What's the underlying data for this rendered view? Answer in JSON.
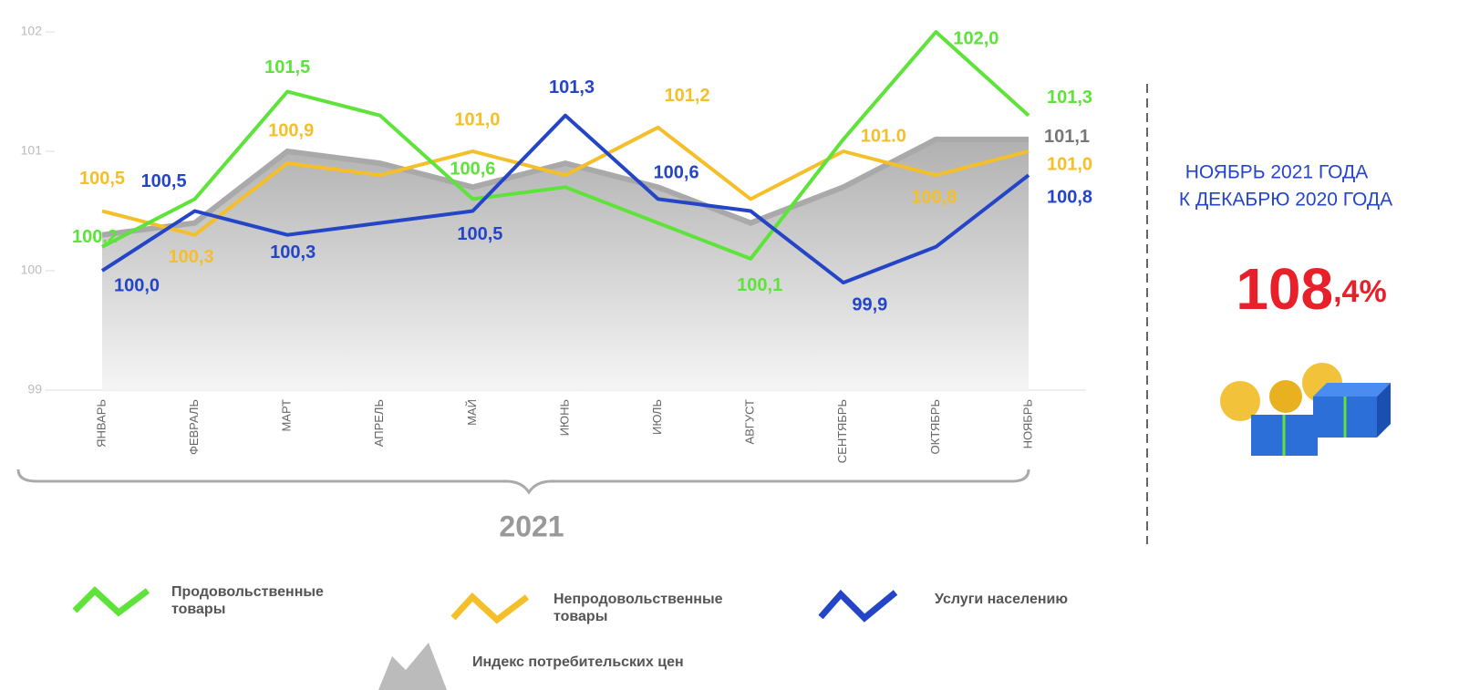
{
  "chart_data": {
    "type": "line",
    "categories": [
      "ЯНВАРЬ",
      "ФЕВРАЛЬ",
      "МАРТ",
      "АПРЕЛЬ",
      "МАЙ",
      "ИЮНЬ",
      "ИЮЛЬ",
      "АВГУСТ",
      "СЕНТЯБРЬ",
      "ОКТЯБРЬ",
      "НОЯБРЬ"
    ],
    "ylim": [
      99,
      102
    ],
    "yticks": [
      99,
      100,
      101,
      102
    ],
    "series": [
      {
        "name": "Продовольственные товары",
        "type": "line",
        "color": "#5ee33a",
        "values": [
          100.2,
          100.6,
          101.5,
          101.3,
          100.6,
          100.7,
          100.4,
          100.1,
          101.1,
          102.0,
          101.3
        ],
        "value_labels": [
          "100,2",
          null,
          "101,5",
          null,
          "100,6",
          null,
          null,
          "100,1",
          null,
          "102,0",
          "101,3"
        ]
      },
      {
        "name": "Непродовольственные товары",
        "type": "line",
        "color": "#f5bf2a",
        "values": [
          100.5,
          100.3,
          100.9,
          100.8,
          101.0,
          100.8,
          101.2,
          100.6,
          101.0,
          100.8,
          101.0
        ],
        "value_labels": [
          "100,5",
          "100,3",
          "100,9",
          null,
          "101,0",
          null,
          "101,2",
          null,
          "101.0",
          "100,8",
          "101,0"
        ]
      },
      {
        "name": "Услуги населению",
        "type": "line",
        "color": "#2445c8",
        "values": [
          100.0,
          100.5,
          100.3,
          100.4,
          100.5,
          101.3,
          100.6,
          100.5,
          99.9,
          100.2,
          100.8
        ],
        "value_labels": [
          "100,0",
          "100,5",
          "100,3",
          null,
          "100,5",
          "101,3",
          "100,6",
          null,
          "99,9",
          null,
          "100,8"
        ]
      },
      {
        "name": "Индекс потребительских цен",
        "type": "area",
        "color": "#a9a9a9",
        "values": [
          100.3,
          100.4,
          101.0,
          100.9,
          100.7,
          100.9,
          100.7,
          100.4,
          100.7,
          101.1,
          101.1
        ],
        "value_labels": [
          null,
          null,
          null,
          null,
          null,
          null,
          null,
          null,
          null,
          null,
          "101,1"
        ]
      }
    ],
    "year_label": "2021",
    "summary_line1": "НОЯБРЬ 2021 ГОДА",
    "summary_line2": "К ДЕКАБРЮ 2020 ГОДА",
    "summary_value": "108",
    "summary_suffix": ",4%"
  }
}
